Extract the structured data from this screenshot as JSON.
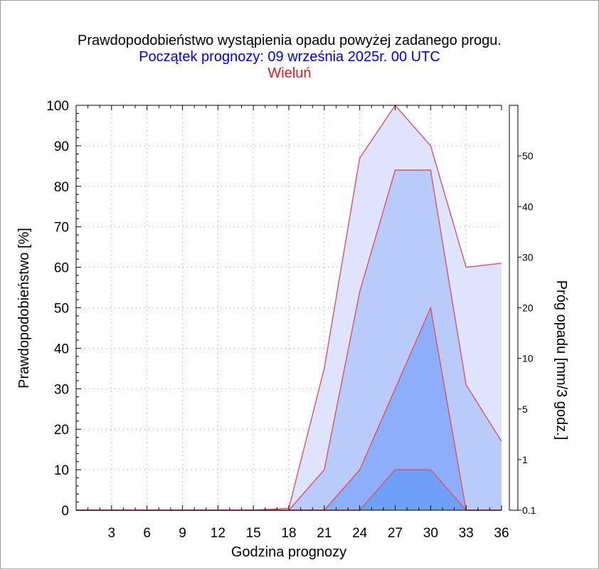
{
  "chart_data": {
    "type": "area",
    "title": "Prawdopodobieństwo wystąpienia opadu powyżej zadanego progu.",
    "subtitle": "Początek prognozy: 09 września 2025r. 00 UTC",
    "location": "Wieluń",
    "xlabel": "Godzina prognozy",
    "ylabel": "Prawdopodobieństwo [%]",
    "xlim": [
      0,
      36
    ],
    "ylim": [
      0,
      100
    ],
    "x_ticks": [
      3,
      6,
      9,
      12,
      15,
      18,
      21,
      24,
      27,
      30,
      33,
      36
    ],
    "y_ticks": [
      0,
      10,
      20,
      30,
      40,
      50,
      60,
      70,
      80,
      90,
      100
    ],
    "x": [
      0,
      3,
      6,
      9,
      12,
      15,
      18,
      21,
      24,
      27,
      30,
      33,
      36
    ],
    "series": [
      {
        "name": "0.1",
        "color": "#dde4fb",
        "values": [
          0,
          0,
          0,
          0,
          0,
          0,
          0.5,
          35,
          87,
          100,
          90,
          60,
          61
        ]
      },
      {
        "name": "1",
        "color": "#b9cbfb",
        "values": [
          0,
          0,
          0,
          0,
          0,
          0,
          0,
          10,
          54,
          84,
          84,
          31,
          17
        ]
      },
      {
        "name": "5",
        "color": "#8daefb",
        "values": [
          0,
          0,
          0,
          0,
          0,
          0,
          0,
          0,
          10,
          30,
          50,
          0,
          0
        ]
      },
      {
        "name": "10",
        "color": "#6ea0f8",
        "values": [
          0,
          0,
          0,
          0,
          0,
          0,
          0,
          0,
          0,
          10,
          10,
          0,
          0
        ]
      }
    ],
    "series_line_color": "#e0505f",
    "colorbar": {
      "label": "Próg opadu [mm/3 godz.]",
      "tick_labels": [
        "0.1",
        "1",
        "5",
        "10",
        "20",
        "30",
        "40",
        "50"
      ],
      "colors": [
        "#eef2fe",
        "#dde4fb",
        "#b9cbfb",
        "#8daefb",
        "#6ea0f8",
        "#3c8cf5",
        "#1a8af0",
        "#1f77e0",
        "#1866d0",
        "#1556bd",
        "#1148a8",
        "#0c3a90"
      ]
    },
    "grid": "dotted",
    "legend": "colorbar-right"
  }
}
